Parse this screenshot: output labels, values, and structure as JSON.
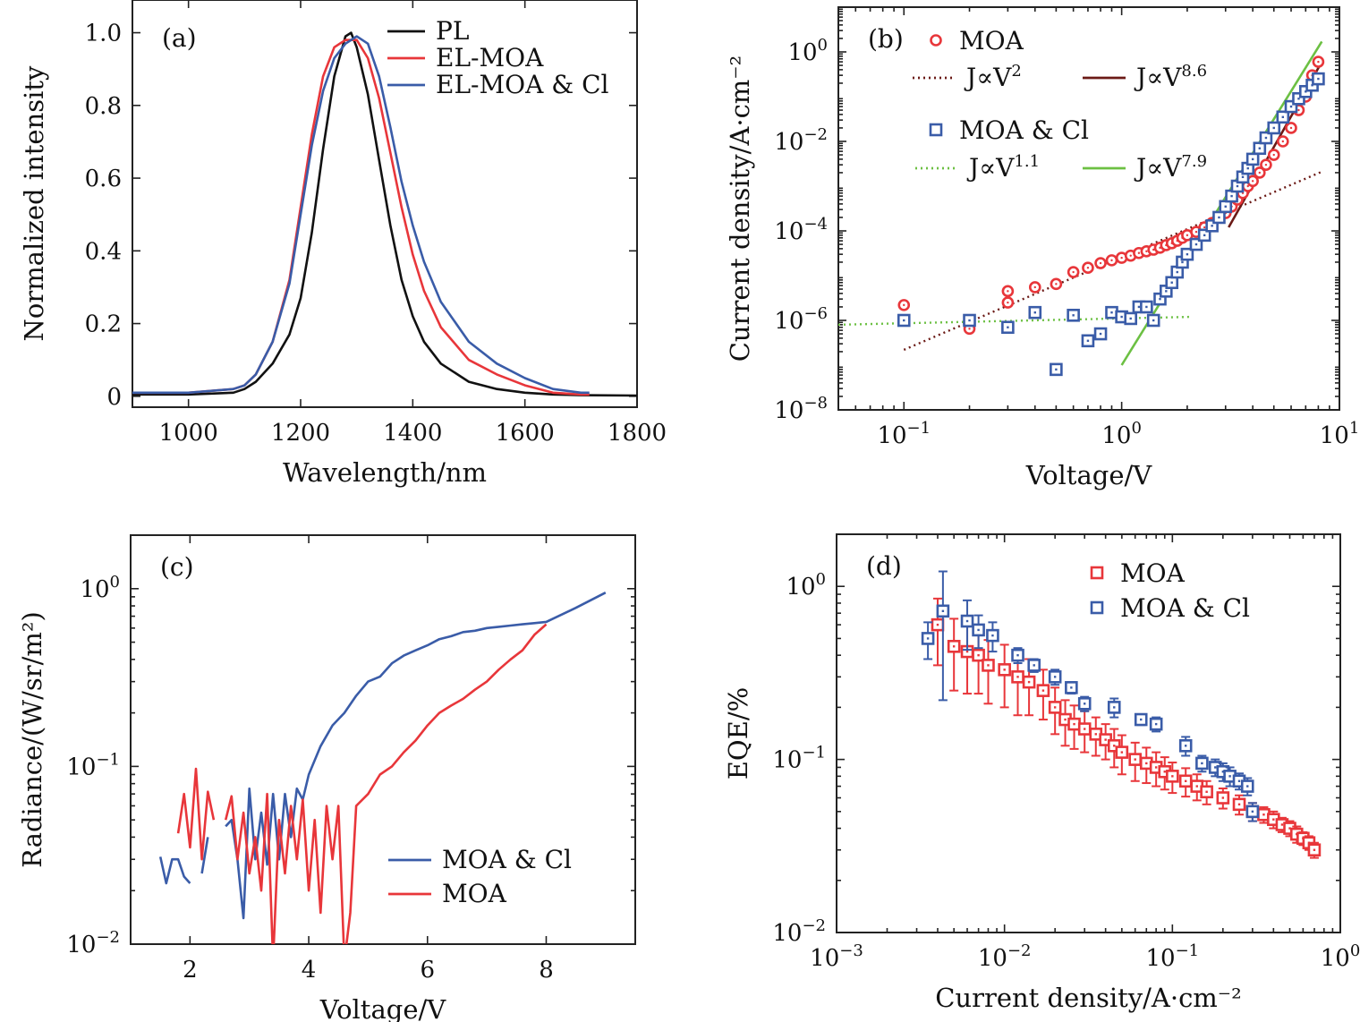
{
  "colors": {
    "black": "#111111",
    "red": "#e8363a",
    "blue": "#3a5ca8",
    "darkred": "#6b1a16",
    "green": "#6cc043"
  },
  "chart_data": [
    {
      "panel": "(a)",
      "type": "line",
      "xlabel": "Wavelength/nm",
      "ylabel": "Normalized intensity",
      "xlim": [
        900,
        1800
      ],
      "ylim": [
        -0.03,
        1.09
      ],
      "xticks": [
        1000,
        1200,
        1400,
        1600,
        1800
      ],
      "xtick_labels": [
        "1000",
        "1200",
        "1400",
        "1600",
        "1800"
      ],
      "yticks": [
        0,
        0.2,
        0.4,
        0.6,
        0.8,
        1.0
      ],
      "ytick_labels": [
        "0",
        "0.2",
        "0.4",
        "0.6",
        "0.8",
        "1.0"
      ],
      "legend": {
        "placement": "top-right"
      },
      "series": [
        {
          "name": "PL",
          "color": "#111111",
          "x": [
            900,
            1000,
            1080,
            1100,
            1120,
            1150,
            1180,
            1200,
            1220,
            1240,
            1260,
            1280,
            1290,
            1300,
            1320,
            1340,
            1360,
            1380,
            1400,
            1420,
            1450,
            1500,
            1550,
            1600,
            1650,
            1700,
            1800
          ],
          "y": [
            0.005,
            0.005,
            0.01,
            0.02,
            0.04,
            0.09,
            0.17,
            0.27,
            0.45,
            0.68,
            0.88,
            0.99,
            1.0,
            0.96,
            0.83,
            0.65,
            0.47,
            0.32,
            0.22,
            0.15,
            0.09,
            0.04,
            0.02,
            0.01,
            0.005,
            0.003,
            0.002
          ]
        },
        {
          "name": "EL-MOA",
          "color": "#e8363a",
          "x": [
            900,
            1000,
            1080,
            1100,
            1120,
            1150,
            1180,
            1200,
            1220,
            1240,
            1260,
            1280,
            1300,
            1320,
            1340,
            1360,
            1380,
            1400,
            1420,
            1450,
            1500,
            1550,
            1600,
            1650,
            1700,
            1715
          ],
          "y": [
            0.01,
            0.01,
            0.02,
            0.03,
            0.06,
            0.15,
            0.32,
            0.52,
            0.72,
            0.88,
            0.96,
            0.98,
            0.98,
            0.93,
            0.82,
            0.67,
            0.52,
            0.39,
            0.29,
            0.19,
            0.1,
            0.06,
            0.03,
            0.01,
            0.005,
            0.005
          ]
        },
        {
          "name": "EL-MOA & Cl",
          "color": "#3a5ca8",
          "x": [
            900,
            1000,
            1080,
            1100,
            1120,
            1150,
            1180,
            1200,
            1220,
            1240,
            1260,
            1280,
            1300,
            1320,
            1340,
            1360,
            1380,
            1400,
            1420,
            1450,
            1500,
            1550,
            1600,
            1650,
            1700,
            1715
          ],
          "y": [
            0.01,
            0.01,
            0.02,
            0.03,
            0.06,
            0.15,
            0.31,
            0.5,
            0.69,
            0.84,
            0.93,
            0.97,
            0.99,
            0.97,
            0.88,
            0.74,
            0.59,
            0.47,
            0.37,
            0.26,
            0.15,
            0.09,
            0.05,
            0.02,
            0.01,
            0.01
          ]
        }
      ]
    },
    {
      "panel": "(b)",
      "type": "scatter",
      "xscale": "log",
      "yscale": "log",
      "xlabel": "Voltage/V",
      "ylabel": "Current density/A·cm⁻²",
      "xlim": [
        0.05,
        10
      ],
      "ylim": [
        1e-08,
        10
      ],
      "xticks": [
        0.1,
        1,
        10
      ],
      "xtick_labels": [
        [
          "10",
          "−1"
        ],
        [
          "10",
          "0"
        ],
        [
          "10",
          "1"
        ]
      ],
      "yticks": [
        1e-08,
        1e-06,
        0.0001,
        0.01,
        1
      ],
      "ytick_labels": [
        [
          "10",
          "−8"
        ],
        [
          "10",
          "−6"
        ],
        [
          "10",
          "−4"
        ],
        [
          "10",
          "−2"
        ],
        [
          "10",
          "0"
        ]
      ],
      "legend": {
        "placement": "top"
      },
      "series": [
        {
          "name": "MOA",
          "color": "#e8363a",
          "marker": "circle",
          "x": [
            0.1,
            0.2,
            0.3,
            0.3,
            0.4,
            0.5,
            0.6,
            0.7,
            0.8,
            0.9,
            1.0,
            1.1,
            1.2,
            1.3,
            1.4,
            1.5,
            1.6,
            1.7,
            1.8,
            1.9,
            2.0,
            2.2,
            2.4,
            2.6,
            2.8,
            3.0,
            3.2,
            3.4,
            3.6,
            3.8,
            4.0,
            4.3,
            4.6,
            5.0,
            5.5,
            6.0,
            6.5,
            7.0,
            7.5,
            8.0
          ],
          "y": [
            2.2e-06,
            6.5e-07,
            2.5e-06,
            4.5e-06,
            5.5e-06,
            6.5e-06,
            1.2e-05,
            1.5e-05,
            1.9e-05,
            2.2e-05,
            2.5e-05,
            2.8e-05,
            3.2e-05,
            3.5e-05,
            3.8e-05,
            4.2e-05,
            4.8e-05,
            5.3e-05,
            6e-05,
            7e-05,
            8e-05,
            9.5e-05,
            0.00012,
            0.00015,
            0.0002,
            0.00025,
            0.00035,
            0.0005,
            0.0007,
            0.001,
            0.0013,
            0.002,
            0.003,
            0.005,
            0.01,
            0.02,
            0.05,
            0.1,
            0.3,
            0.6
          ]
        },
        {
          "name": "MOA & Cl",
          "color": "#3a5ca8",
          "marker": "square",
          "x": [
            0.1,
            0.2,
            0.3,
            0.4,
            0.5,
            0.6,
            0.7,
            0.8,
            0.9,
            1.0,
            1.1,
            1.2,
            1.3,
            1.4,
            1.5,
            1.6,
            1.7,
            1.8,
            1.9,
            2.0,
            2.2,
            2.4,
            2.6,
            2.8,
            3.0,
            3.2,
            3.4,
            3.6,
            3.8,
            4.0,
            4.3,
            4.6,
            5.0,
            5.5,
            6.0,
            6.5,
            7.0,
            7.5,
            8.0
          ],
          "y": [
            1e-06,
            1e-06,
            7e-07,
            1.5e-06,
            8e-08,
            1.3e-06,
            3.5e-07,
            5e-07,
            1.5e-06,
            1.2e-06,
            1.1e-06,
            2e-06,
            2e-06,
            1e-06,
            3e-06,
            4.5e-06,
            7e-06,
            1.2e-05,
            2e-05,
            3e-05,
            5e-05,
            8e-05,
            0.00013,
            0.0002,
            0.00035,
            0.0006,
            0.001,
            0.0016,
            0.0025,
            0.004,
            0.007,
            0.012,
            0.02,
            0.035,
            0.06,
            0.09,
            0.13,
            0.18,
            0.25
          ]
        }
      ],
      "fit_lines": [
        {
          "label": [
            "J∝V",
            "2"
          ],
          "color": "#6b1a16",
          "style": "dotted",
          "x": [
            0.1,
            8.3
          ],
          "y": [
            2.2e-07,
            0.0021
          ]
        },
        {
          "label": [
            "J∝V",
            "8.6"
          ],
          "color": "#6b1a16",
          "style": "solid",
          "x": [
            3.1,
            8.3
          ],
          "y": [
            0.00012,
            0.6
          ]
        },
        {
          "label": [
            "J∝V",
            "1.1"
          ],
          "color": "#6cc043",
          "style": "dotted",
          "x": [
            0.05,
            2.1
          ],
          "y": [
            8e-07,
            1.2e-06
          ]
        },
        {
          "label": [
            "J∝V",
            "7.9"
          ],
          "color": "#6cc043",
          "style": "solid",
          "x": [
            1.0,
            8.3
          ],
          "y": [
            1e-07,
            1.7
          ]
        }
      ]
    },
    {
      "panel": "(c)",
      "type": "line",
      "yscale": "log",
      "xlabel": "Voltage/V",
      "ylabel": "Radiance/(W/sr/m²)",
      "xlim": [
        1,
        9.5
      ],
      "ylim": [
        0.01,
        2
      ],
      "xticks": [
        2,
        4,
        6,
        8
      ],
      "xtick_labels": [
        "2",
        "4",
        "6",
        "8"
      ],
      "yticks": [
        0.01,
        0.1,
        1
      ],
      "ytick_labels": [
        [
          "10",
          "−2"
        ],
        [
          "10",
          "−1"
        ],
        [
          "10",
          "0"
        ]
      ],
      "legend": {
        "placement": "bottom-right"
      },
      "series": [
        {
          "name": "MOA & Cl",
          "color": "#3a5ca8",
          "x": [
            1.5,
            1.6,
            1.7,
            1.8,
            1.9,
            2.0,
            null,
            2.2,
            2.3,
            null,
            2.6,
            2.7,
            2.8,
            2.9,
            3.0,
            3.1,
            3.2,
            3.3,
            3.4,
            3.5,
            3.6,
            3.7,
            3.8,
            3.9,
            4.0,
            4.2,
            4.4,
            4.6,
            4.8,
            5.0,
            5.2,
            5.4,
            5.6,
            5.8,
            6.0,
            6.2,
            6.4,
            6.6,
            6.8,
            7.0,
            7.2,
            7.4,
            7.6,
            7.8,
            8.0,
            8.5,
            9.0
          ],
          "y": [
            0.031,
            0.022,
            0.03,
            0.03,
            0.024,
            0.022,
            null,
            0.025,
            0.04,
            null,
            0.046,
            0.05,
            0.03,
            0.014,
            0.075,
            0.03,
            0.055,
            0.028,
            0.07,
            0.03,
            0.07,
            0.04,
            0.075,
            0.065,
            0.09,
            0.13,
            0.17,
            0.2,
            0.25,
            0.3,
            0.32,
            0.38,
            0.42,
            0.45,
            0.48,
            0.52,
            0.54,
            0.57,
            0.58,
            0.6,
            0.61,
            0.62,
            0.63,
            0.64,
            0.65,
            0.78,
            0.95
          ]
        },
        {
          "name": "MOA",
          "color": "#e8363a",
          "x": [
            1.8,
            1.9,
            2.0,
            2.1,
            2.2,
            2.3,
            2.4,
            null,
            2.6,
            2.7,
            2.8,
            2.9,
            3.0,
            3.1,
            3.2,
            3.3,
            3.4,
            3.5,
            3.6,
            3.7,
            3.8,
            3.9,
            4.0,
            4.1,
            4.2,
            4.3,
            4.4,
            4.5,
            4.6,
            4.7,
            4.8,
            5.0,
            5.2,
            5.4,
            5.6,
            5.8,
            6.0,
            6.2,
            6.4,
            6.6,
            6.8,
            7.0,
            7.2,
            7.4,
            7.6,
            7.8,
            8.0
          ],
          "y": [
            0.042,
            0.07,
            0.035,
            0.097,
            0.03,
            0.072,
            0.05,
            null,
            0.05,
            0.068,
            0.03,
            0.055,
            0.025,
            0.04,
            0.02,
            0.07,
            0.008,
            0.05,
            0.025,
            0.06,
            0.03,
            0.065,
            0.02,
            0.05,
            0.015,
            0.06,
            0.03,
            0.06,
            0.008,
            0.015,
            0.06,
            0.07,
            0.09,
            0.1,
            0.12,
            0.14,
            0.17,
            0.2,
            0.22,
            0.24,
            0.27,
            0.3,
            0.35,
            0.4,
            0.45,
            0.55,
            0.63
          ]
        }
      ]
    },
    {
      "panel": "(d)",
      "type": "scatter",
      "xscale": "log",
      "yscale": "log",
      "xlabel": "Current density/A·cm⁻²",
      "ylabel": "EQE/%",
      "xlim": [
        0.001,
        1
      ],
      "ylim": [
        0.01,
        2
      ],
      "xticks": [
        0.001,
        0.01,
        0.1,
        1
      ],
      "xtick_labels": [
        [
          "10",
          "−3"
        ],
        [
          "10",
          "−2"
        ],
        [
          "10",
          "−1"
        ],
        [
          "10",
          "0"
        ]
      ],
      "yticks": [
        0.01,
        0.1,
        1
      ],
      "ytick_labels": [
        [
          "10",
          "−2"
        ],
        [
          "10",
          "−1"
        ],
        [
          "10",
          "0"
        ]
      ],
      "legend": {
        "placement": "top-right"
      },
      "series": [
        {
          "name": "MOA",
          "color": "#e8363a",
          "marker": "square",
          "x": [
            0.004,
            0.005,
            0.006,
            0.007,
            0.008,
            0.01,
            0.012,
            0.014,
            0.017,
            0.02,
            0.023,
            0.026,
            0.03,
            0.035,
            0.04,
            0.045,
            0.05,
            0.06,
            0.07,
            0.08,
            0.09,
            0.1,
            0.12,
            0.14,
            0.16,
            0.2,
            0.25,
            0.3,
            0.35,
            0.4,
            0.45,
            0.5,
            0.55,
            0.6,
            0.65,
            0.7
          ],
          "y": [
            0.6,
            0.45,
            0.42,
            0.4,
            0.35,
            0.33,
            0.3,
            0.28,
            0.25,
            0.2,
            0.17,
            0.16,
            0.15,
            0.14,
            0.13,
            0.12,
            0.11,
            0.1,
            0.095,
            0.09,
            0.085,
            0.08,
            0.075,
            0.07,
            0.065,
            0.06,
            0.055,
            0.05,
            0.048,
            0.045,
            0.042,
            0.04,
            0.037,
            0.035,
            0.033,
            0.03
          ],
          "err": [
            0.25,
            0.2,
            0.18,
            0.16,
            0.14,
            0.13,
            0.12,
            0.1,
            0.08,
            0.06,
            0.05,
            0.045,
            0.04,
            0.035,
            0.03,
            0.03,
            0.028,
            0.025,
            0.022,
            0.02,
            0.018,
            0.016,
            0.014,
            0.012,
            0.01,
            0.008,
            0.007,
            0.006,
            0.005,
            0.005,
            0.004,
            0.004,
            0.004,
            0.003,
            0.003,
            0.003
          ]
        },
        {
          "name": "MOA & Cl",
          "color": "#3a5ca8",
          "marker": "square",
          "x": [
            0.0035,
            0.0043,
            0.006,
            0.007,
            0.0085,
            0.012,
            0.015,
            0.02,
            0.025,
            0.03,
            0.045,
            0.065,
            0.08,
            0.12,
            0.15,
            0.18,
            0.2,
            0.22,
            0.25,
            0.28,
            0.3
          ],
          "y": [
            0.5,
            0.72,
            0.63,
            0.56,
            0.52,
            0.4,
            0.35,
            0.3,
            0.26,
            0.21,
            0.2,
            0.17,
            0.16,
            0.12,
            0.095,
            0.09,
            0.085,
            0.08,
            0.075,
            0.07,
            0.05
          ],
          "err": [
            0.12,
            0.5,
            0.2,
            0.12,
            0.1,
            0.04,
            0.03,
            0.03,
            0.02,
            0.02,
            0.025,
            0.012,
            0.015,
            0.015,
            0.01,
            0.01,
            0.01,
            0.01,
            0.008,
            0.008,
            0.006
          ]
        }
      ]
    }
  ]
}
